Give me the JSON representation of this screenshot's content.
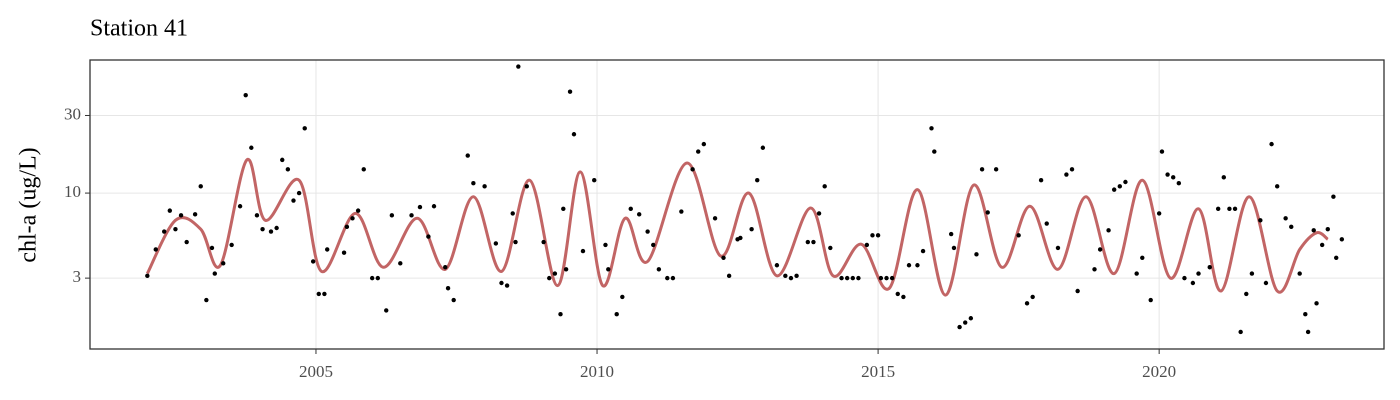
{
  "chart_data": {
    "type": "scatter",
    "title": "Station 41",
    "y_label": "chl-a (ug/L)",
    "log_y": true,
    "grid": true,
    "xlim": [
      2000.98,
      2024.0
    ],
    "xticks": [
      2005,
      2010,
      2015,
      2020
    ],
    "ylim": [
      1.1,
      65.8
    ],
    "yticks": [
      3,
      10,
      30
    ],
    "point_color": "#000000",
    "x": [
      2002.0,
      2002.15,
      2002.3,
      2002.4,
      2002.5,
      2002.6,
      2002.7,
      2002.85,
      2002.95,
      2003.05,
      2003.15,
      2003.2,
      2003.35,
      2003.5,
      2003.65,
      2003.75,
      2003.85,
      2003.95,
      2004.05,
      2004.2,
      2004.3,
      2004.4,
      2004.5,
      2004.6,
      2004.7,
      2004.8,
      2004.95,
      2005.05,
      2005.15,
      2005.2,
      2005.5,
      2005.55,
      2005.65,
      2005.75,
      2005.85,
      2006.0,
      2006.1,
      2006.25,
      2006.35,
      2006.5,
      2006.7,
      2006.85,
      2007.0,
      2007.1,
      2007.3,
      2007.35,
      2007.45,
      2007.7,
      2007.8,
      2008.0,
      2008.2,
      2008.3,
      2008.4,
      2008.5,
      2008.55,
      2008.6,
      2008.75,
      2009.05,
      2009.15,
      2009.25,
      2009.35,
      2009.4,
      2009.45,
      2009.52,
      2009.59,
      2009.75,
      2009.95,
      2010.15,
      2010.2,
      2010.35,
      2010.45,
      2010.6,
      2010.75,
      2010.9,
      2011.0,
      2011.1,
      2011.25,
      2011.35,
      2011.5,
      2011.7,
      2011.8,
      2011.9,
      2012.1,
      2012.25,
      2012.35,
      2012.5,
      2012.55,
      2012.75,
      2012.85,
      2012.95,
      2013.2,
      2013.35,
      2013.45,
      2013.55,
      2013.75,
      2013.85,
      2013.95,
      2014.05,
      2014.15,
      2014.35,
      2014.45,
      2014.55,
      2014.65,
      2014.8,
      2014.9,
      2015.0,
      2015.05,
      2015.15,
      2015.25,
      2015.35,
      2015.45,
      2015.55,
      2015.7,
      2015.8,
      2015.95,
      2016.0,
      2016.3,
      2016.35,
      2016.45,
      2016.55,
      2016.65,
      2016.75,
      2016.85,
      2016.95,
      2017.1,
      2017.5,
      2017.65,
      2017.75,
      2017.9,
      2018.0,
      2018.2,
      2018.35,
      2018.45,
      2018.55,
      2018.85,
      2018.95,
      2019.1,
      2019.2,
      2019.3,
      2019.4,
      2019.6,
      2019.7,
      2019.85,
      2020.0,
      2020.05,
      2020.15,
      2020.25,
      2020.35,
      2020.45,
      2020.6,
      2020.7,
      2020.9,
      2021.05,
      2021.15,
      2021.25,
      2021.35,
      2021.45,
      2021.55,
      2021.65,
      2021.8,
      2021.9,
      2022.0,
      2022.1,
      2022.25,
      2022.35,
      2022.5,
      2022.6,
      2022.65,
      2022.75,
      2022.8,
      2022.9,
      2023.0,
      2023.1,
      2023.15,
      2023.25
    ],
    "values": [
      3.1,
      4.5,
      5.8,
      7.8,
      6,
      7.3,
      5,
      7.4,
      11,
      2.2,
      4.6,
      3.2,
      3.7,
      4.8,
      8.3,
      40,
      19,
      7.3,
      6,
      5.8,
      6.1,
      16,
      14,
      9,
      10,
      25,
      3.8,
      2.4,
      2.4,
      4.5,
      4.3,
      6.2,
      7,
      7.8,
      14,
      3,
      3,
      1.9,
      7.3,
      3.7,
      7.3,
      8.2,
      5.4,
      8.3,
      3.5,
      2.6,
      2.2,
      17,
      11.5,
      11,
      4.9,
      2.8,
      2.7,
      7.5,
      5,
      60,
      11,
      5,
      3,
      3.2,
      1.8,
      8,
      3.4,
      42,
      23,
      4.4,
      12,
      4.8,
      3.4,
      1.8,
      2.3,
      8,
      7.4,
      5.8,
      4.8,
      3.4,
      3,
      3,
      7.7,
      14,
      18,
      20,
      7,
      4,
      3.1,
      5.2,
      5.3,
      6,
      12,
      19,
      3.6,
      3.1,
      3,
      3.1,
      5,
      5,
      7.5,
      11,
      4.6,
      3,
      3,
      3,
      3,
      4.8,
      5.5,
      5.5,
      3,
      3,
      3,
      2.4,
      2.3,
      3.6,
      3.6,
      4.4,
      25,
      18,
      5.6,
      4.6,
      1.5,
      1.6,
      1.7,
      4.2,
      14,
      7.6,
      14,
      5.5,
      2.1,
      2.3,
      12,
      6.5,
      4.6,
      13,
      14,
      2.5,
      3.4,
      4.5,
      5.9,
      10.5,
      11,
      11.7,
      3.2,
      4,
      2.2,
      7.5,
      18,
      13,
      12.5,
      11.5,
      3,
      2.8,
      3.2,
      3.5,
      8,
      12.5,
      8,
      8,
      1.4,
      2.4,
      3.2,
      6.8,
      2.8,
      20,
      11,
      7,
      6.2,
      3.2,
      1.8,
      1.4,
      5.9,
      2.1,
      4.8,
      6,
      9.5,
      4,
      5.2
    ],
    "smooth": {
      "color": "#c26565",
      "x": [
        2002.0,
        2002.5,
        2002.95,
        2003.3,
        2003.77,
        2004.1,
        2004.7,
        2005.1,
        2005.7,
        2006.2,
        2006.8,
        2007.3,
        2007.8,
        2008.3,
        2008.8,
        2009.3,
        2009.7,
        2010.1,
        2010.5,
        2010.9,
        2011.6,
        2012.2,
        2012.7,
        2013.2,
        2013.8,
        2014.2,
        2014.7,
        2015.2,
        2015.7,
        2016.2,
        2016.7,
        2017.2,
        2017.7,
        2018.2,
        2018.7,
        2019.2,
        2019.7,
        2020.2,
        2020.7,
        2021.1,
        2021.6,
        2022.1,
        2022.5,
        2022.8,
        2023.0
      ],
      "values": [
        3.2,
        6.8,
        6,
        3.6,
        16,
        6.8,
        12,
        3.3,
        7.5,
        3.5,
        7,
        3.4,
        9.5,
        3.3,
        12,
        2.7,
        13.5,
        2.7,
        7,
        3.8,
        15.3,
        4.1,
        10,
        3.1,
        8.1,
        3.1,
        4.85,
        2.6,
        10.5,
        2.36,
        11.2,
        3.5,
        8.3,
        3.4,
        9.5,
        3.2,
        12,
        3,
        8,
        2.5,
        9.5,
        2.5,
        4.5,
        5.7,
        5.2
      ]
    }
  }
}
